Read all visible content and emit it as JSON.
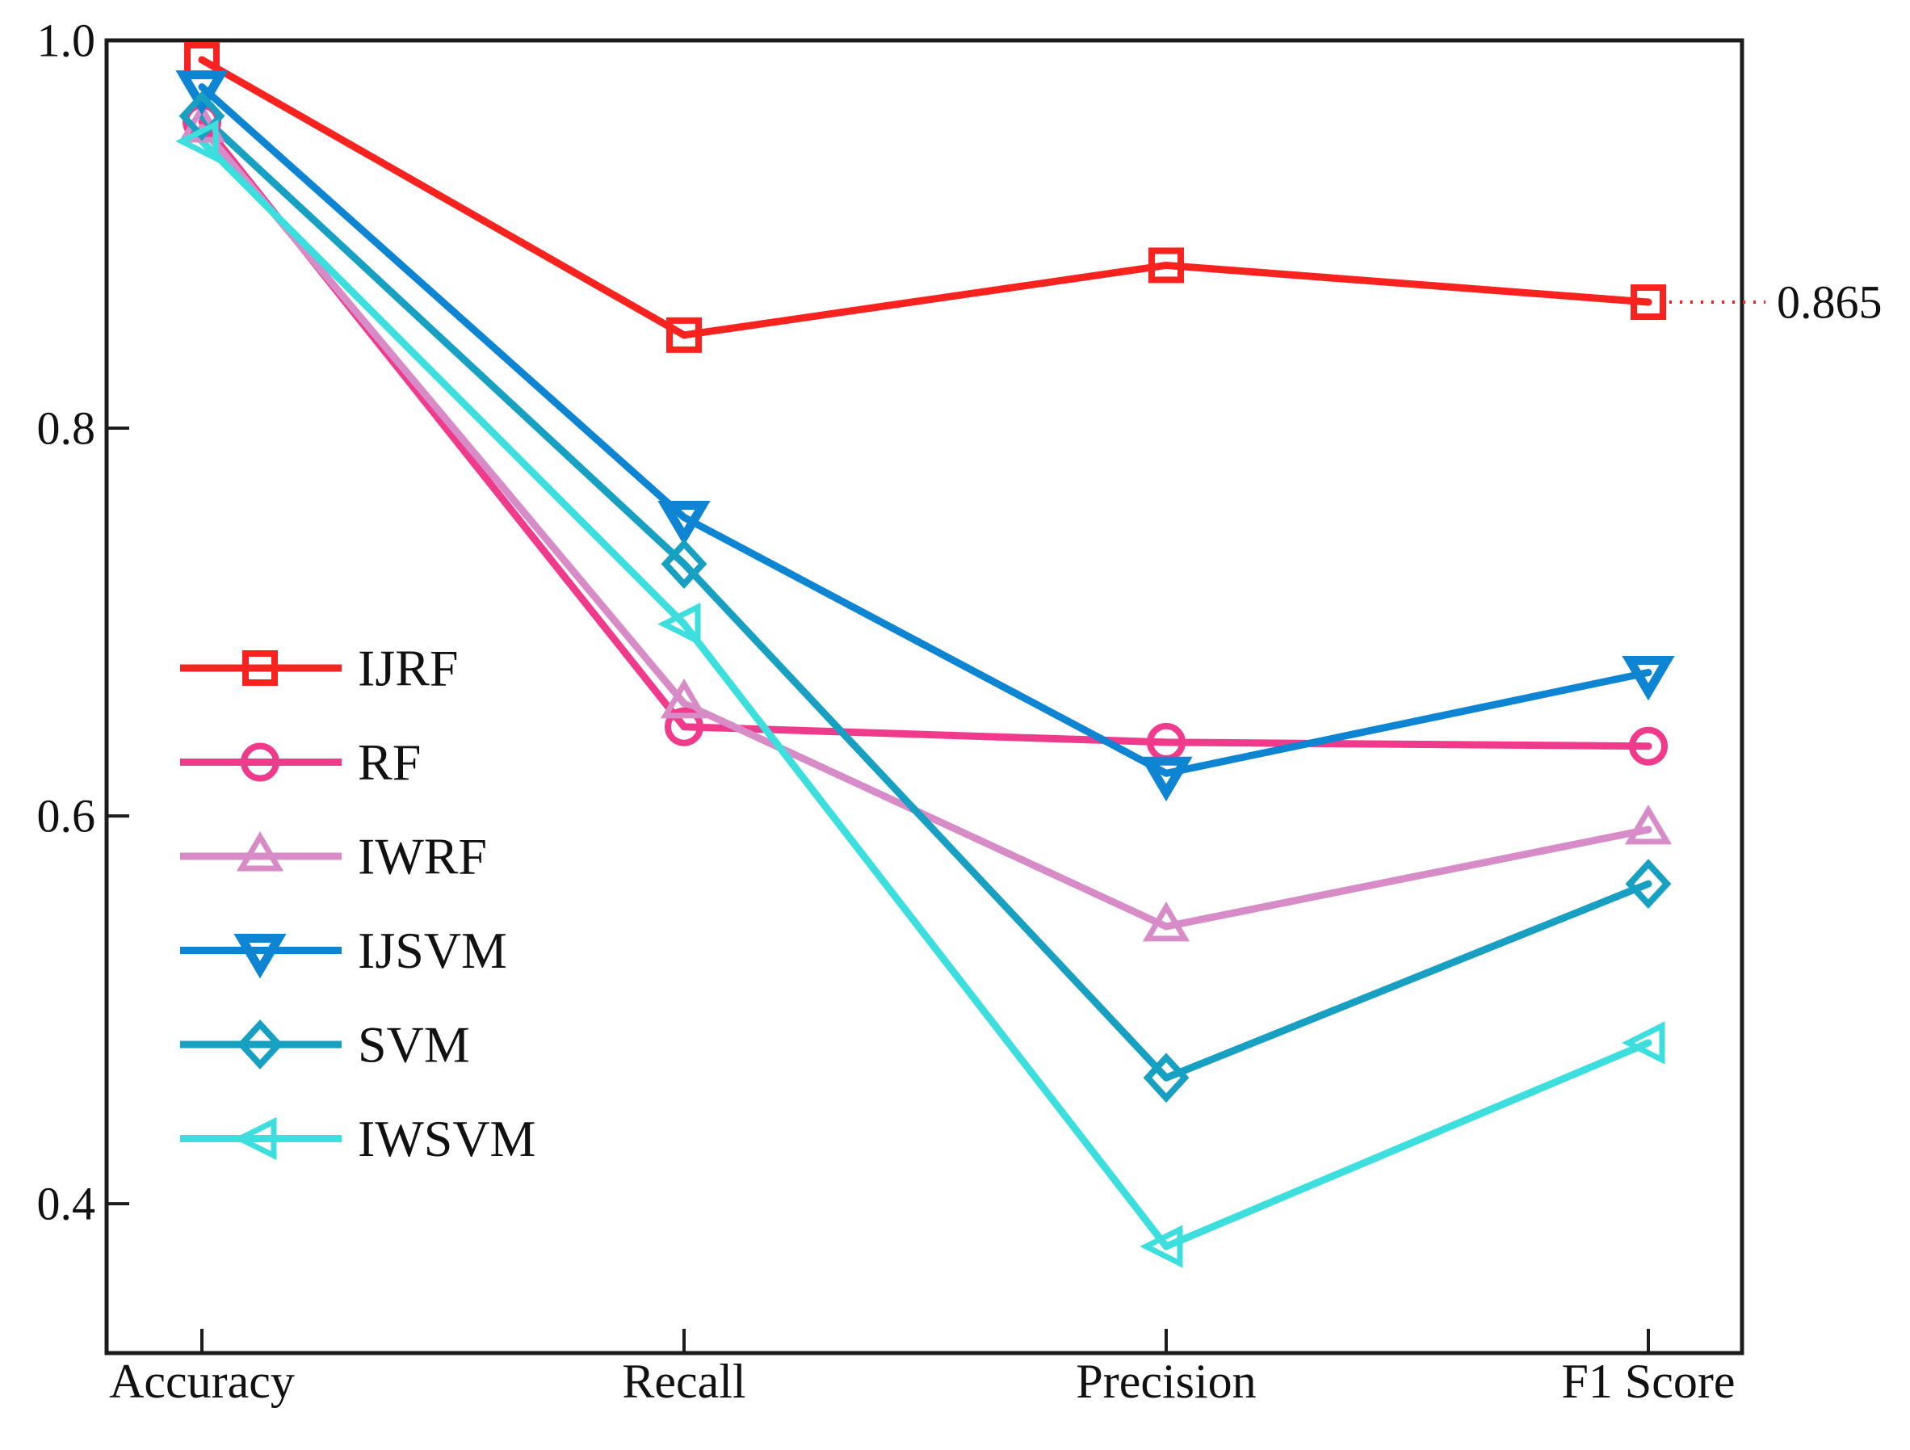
{
  "figure": {
    "background": "#ffffff",
    "axis_color": "#1c1c1c",
    "text_color": "#111111"
  },
  "chart_data": {
    "type": "line",
    "categories": [
      "Accuracy",
      "Recall",
      "Precision",
      "F1 Score"
    ],
    "series": [
      {
        "name": "IJRF",
        "marker": "square",
        "color": "#f8231f",
        "values": [
          0.99,
          0.848,
          0.884,
          0.865
        ]
      },
      {
        "name": "RF",
        "marker": "circle",
        "color": "#f03a8c",
        "values": [
          0.958,
          0.646,
          0.638,
          0.636
        ]
      },
      {
        "name": "IWRF",
        "marker": "triangle-up",
        "color": "#d78cc8",
        "values": [
          0.955,
          0.658,
          0.543,
          0.593
        ]
      },
      {
        "name": "IJSVM",
        "marker": "triangle-down",
        "color": "#0e85d2",
        "values": [
          0.976,
          0.754,
          0.622,
          0.674
        ]
      },
      {
        "name": "SVM",
        "marker": "diamond",
        "color": "#18a0c2",
        "values": [
          0.961,
          0.73,
          0.465,
          0.565
        ]
      },
      {
        "name": "IWSVM",
        "marker": "triangle-left",
        "color": "#3cdede",
        "values": [
          0.948,
          0.699,
          0.378,
          0.483
        ]
      }
    ],
    "xlabel": "",
    "ylabel": "",
    "title": "",
    "ylim": [
      0.323,
      1.0
    ],
    "yticks": [
      1.0,
      0.8,
      0.6,
      0.4
    ],
    "ytick_labels": [
      "1.0",
      "0.8",
      "0.6",
      "0.4"
    ],
    "grid": false,
    "legend_position": "inside-left",
    "annotation": {
      "text": "0.865",
      "series": "IJRF",
      "category": "F1 Score",
      "value": 0.865,
      "leader_style": "dotted"
    }
  }
}
